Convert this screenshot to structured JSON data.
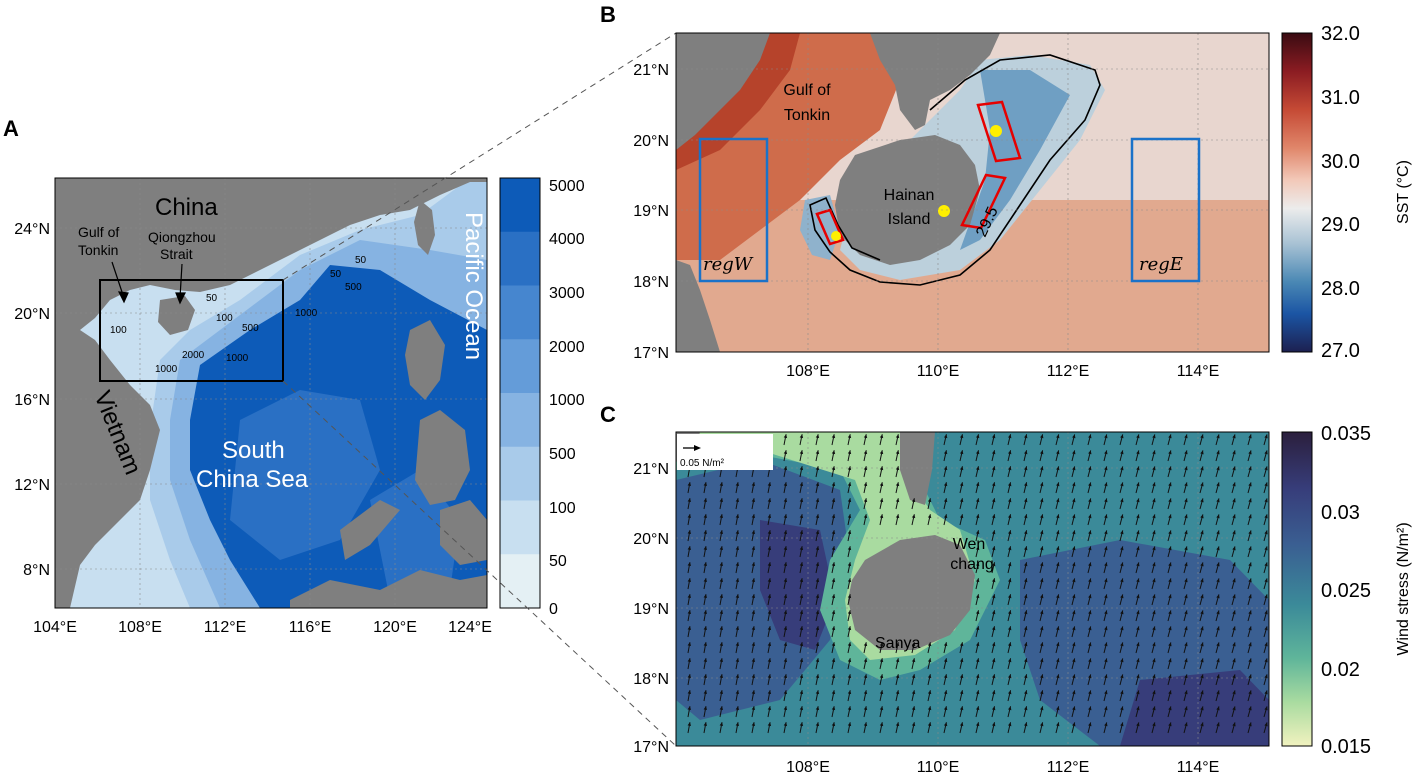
{
  "panels": {
    "A": {
      "letter": "A",
      "country_china": "China",
      "country_vietnam": "Vietnam",
      "gulf_label": [
        "Gulf of",
        "Tonkin"
      ],
      "strait_label": [
        "Qiongzhou",
        "Strait"
      ],
      "sea_label": [
        "South",
        "China Sea"
      ],
      "ocean_label": "Pacific Ocean",
      "depth_labels": [
        "50",
        "50",
        "500",
        "1000",
        "50",
        "100",
        "500",
        "100",
        "1000",
        "2000",
        "1000"
      ],
      "lat_ticks": [
        "24°N",
        "20°N",
        "16°N",
        "12°N",
        "8°N"
      ],
      "lon_ticks": [
        "104°E",
        "108°E",
        "112°E",
        "116°E",
        "120°E",
        "124°E"
      ],
      "colorbar_ticks": [
        "5000",
        "4000",
        "3000",
        "2000",
        "1000",
        "500",
        "100",
        "50",
        "0"
      ],
      "colorbar_colors": [
        "#0d5bb8",
        "#2a70c4",
        "#4686cf",
        "#649cd9",
        "#86b3e2",
        "#a9cbea",
        "#c8dff0",
        "#e4f0f4"
      ]
    },
    "B": {
      "letter": "B",
      "gulf_label": [
        "Gulf of",
        "Tonkin"
      ],
      "island_label": [
        "Hainan",
        "Island"
      ],
      "contour_label": "29.5",
      "box_west": "regW",
      "box_east": "regE",
      "lat_ticks": [
        "21°N",
        "20°N",
        "19°N",
        "18°N",
        "17°N"
      ],
      "lon_ticks": [
        "108°E",
        "110°E",
        "112°E",
        "114°E"
      ],
      "colorbar_ticks": [
        "32.0",
        "31.0",
        "30.0",
        "29.0",
        "28.0",
        "27.0"
      ],
      "colorbar_title": "SST (°C)",
      "colormap": [
        "#3a0b12",
        "#8b1c22",
        "#c54a35",
        "#e0866a",
        "#f2c8b8",
        "#ececec",
        "#a8c2d4",
        "#4a88b4",
        "#1b55a4",
        "#1c2050"
      ],
      "colorbar_range": [
        27.0,
        32.0
      ]
    },
    "C": {
      "letter": "C",
      "scale_label": "0.05 N/m²",
      "place_wenchang": [
        "Wen",
        "chang"
      ],
      "place_sanya": "Sanya",
      "lat_ticks": [
        "21°N",
        "20°N",
        "19°N",
        "18°N",
        "17°N"
      ],
      "lon_ticks": [
        "108°E",
        "110°E",
        "112°E",
        "114°E"
      ],
      "colorbar_ticks": [
        "0.035",
        "0.03",
        "0.025",
        "0.02",
        "0.015"
      ],
      "colorbar_title": "Wind stress (N/m²)",
      "colormap": [
        "#2b1f3d",
        "#373d7a",
        "#3a5f92",
        "#3b8a99",
        "#5fb59a",
        "#a9dba0",
        "#f1f2bf"
      ],
      "colorbar_range": [
        0.015,
        0.035
      ]
    }
  }
}
